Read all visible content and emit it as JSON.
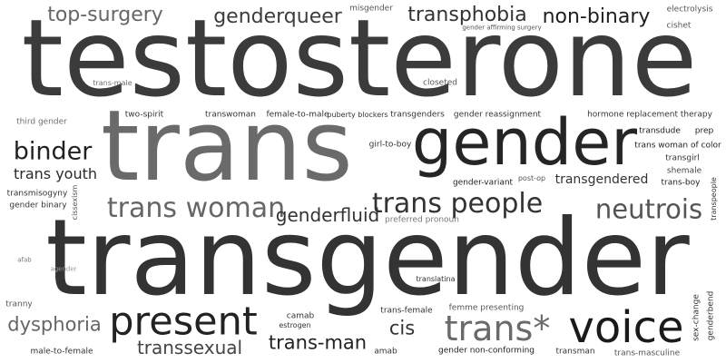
{
  "words": {
    "w0": {
      "text": "testosterone",
      "color": "#3b3b3b"
    },
    "w1": {
      "text": "trans",
      "color": "#6a6a6a"
    },
    "w2": {
      "text": "gender",
      "color": "#252525"
    },
    "w3": {
      "text": "transgender",
      "color": "#333333"
    },
    "w4": {
      "text": "top-surgery",
      "color": "#666666"
    },
    "w5": {
      "text": "genderqueer",
      "color": "#3c3c3c"
    },
    "w6": {
      "text": "misgender",
      "color": "#555555"
    },
    "w7": {
      "text": "transphobia",
      "color": "#333333"
    },
    "w8": {
      "text": "non-binary",
      "color": "#1f1f1f"
    },
    "w9": {
      "text": "electrolysis",
      "color": "#555555"
    },
    "w10": {
      "text": "gender affirming surgery",
      "color": "#555555"
    },
    "w11": {
      "text": "cishet",
      "color": "#555555"
    },
    "w12": {
      "text": "trans-male",
      "color": "#6f6f6f"
    },
    "w13": {
      "text": "closeted",
      "color": "#555555"
    },
    "w14": {
      "text": "third gender",
      "color": "#6f6f6f"
    },
    "w15": {
      "text": "two-spirit",
      "color": "#333333"
    },
    "w16": {
      "text": "transwoman",
      "color": "#333333"
    },
    "w17": {
      "text": "female-to-male",
      "color": "#333333"
    },
    "w18": {
      "text": "puberty blockers",
      "color": "#333333"
    },
    "w19": {
      "text": "transgenders",
      "color": "#333333"
    },
    "w20": {
      "text": "gender reassignment",
      "color": "#333333"
    },
    "w21": {
      "text": "hormone replacement therapy",
      "color": "#333333"
    },
    "w22": {
      "text": "binder",
      "color": "#222222"
    },
    "w23": {
      "text": "girl-to-boy",
      "color": "#333333"
    },
    "w24": {
      "text": "transdude",
      "color": "#222222"
    },
    "w25": {
      "text": "prep",
      "color": "#222222"
    },
    "w26": {
      "text": "trans woman of color",
      "color": "#222222"
    },
    "w27": {
      "text": "transgirl",
      "color": "#333333"
    },
    "w28": {
      "text": "trans youth",
      "color": "#2a2a2a"
    },
    "w29": {
      "text": "shemale",
      "color": "#444444"
    },
    "w30": {
      "text": "gender-variant",
      "color": "#222222"
    },
    "w31": {
      "text": "post-op",
      "color": "#555555"
    },
    "w32": {
      "text": "transgendered",
      "color": "#333333"
    },
    "w33": {
      "text": "trans-boy",
      "color": "#222222"
    },
    "w34": {
      "text": "transmisogyny",
      "color": "#333333"
    },
    "w35": {
      "text": "cissexism",
      "color": "#555555"
    },
    "w36": {
      "text": "transpeople",
      "color": "#333333"
    },
    "w37": {
      "text": "gender binary",
      "color": "#333333"
    },
    "w38": {
      "text": "trans woman",
      "color": "#666666"
    },
    "w39": {
      "text": "trans people",
      "color": "#333333"
    },
    "w40": {
      "text": "neutrois",
      "color": "#555555"
    },
    "w41": {
      "text": "genderfluid",
      "color": "#333333"
    },
    "w42": {
      "text": "preferred pronoun",
      "color": "#777777"
    },
    "w43": {
      "text": "afab",
      "color": "#777777"
    },
    "w44": {
      "text": "agender",
      "color": "#999999"
    },
    "w45": {
      "text": "translatina",
      "color": "#333333"
    },
    "w46": {
      "text": "tranny",
      "color": "#555555"
    },
    "w47": {
      "text": "femme presenting",
      "color": "#555555"
    },
    "w48": {
      "text": "sex-change",
      "color": "#333333"
    },
    "w49": {
      "text": "genderbend",
      "color": "#333333"
    },
    "w50": {
      "text": "camab",
      "color": "#333333"
    },
    "w51": {
      "text": "trans-female",
      "color": "#333333"
    },
    "w52": {
      "text": "estrogen",
      "color": "#333333"
    },
    "w53": {
      "text": "dysphoria",
      "color": "#666666"
    },
    "w54": {
      "text": "present",
      "color": "#222222"
    },
    "w55": {
      "text": "cis",
      "color": "#333333"
    },
    "w56": {
      "text": "trans*",
      "color": "#6a6a6a"
    },
    "w57": {
      "text": "voice",
      "color": "#1a1a1a"
    },
    "w58": {
      "text": "transsexual",
      "color": "#444444"
    },
    "w59": {
      "text": "trans-man",
      "color": "#222222"
    },
    "w60": {
      "text": "male-to-female",
      "color": "#333333"
    },
    "w61": {
      "text": "amab",
      "color": "#333333"
    },
    "w62": {
      "text": "gender non-conforming",
      "color": "#222222"
    },
    "w63": {
      "text": "transman",
      "color": "#333333"
    },
    "w64": {
      "text": "trans-masculine",
      "color": "#555555"
    }
  }
}
